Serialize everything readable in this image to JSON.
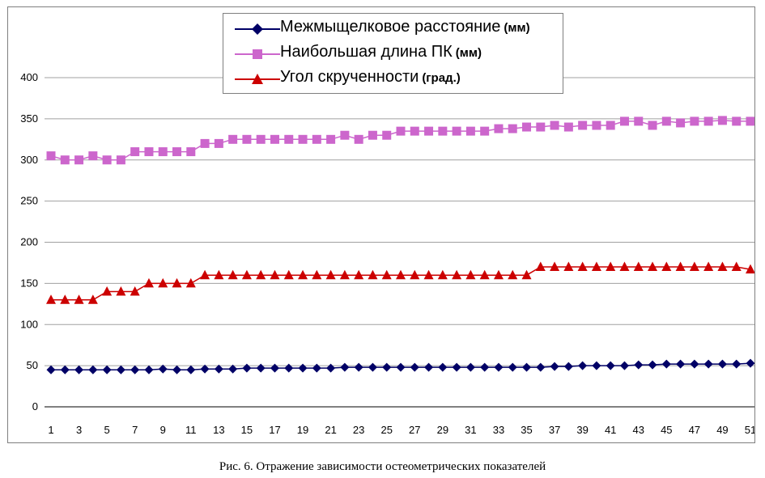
{
  "chart_data": {
    "type": "line",
    "x": [
      1,
      2,
      3,
      4,
      5,
      6,
      7,
      8,
      9,
      10,
      11,
      12,
      13,
      14,
      15,
      16,
      17,
      18,
      19,
      20,
      21,
      22,
      23,
      24,
      25,
      26,
      27,
      28,
      29,
      30,
      31,
      32,
      33,
      34,
      35,
      36,
      37,
      38,
      39,
      40,
      41,
      42,
      43,
      44,
      45,
      46,
      47,
      48,
      49,
      50,
      51
    ],
    "xticks": [
      1,
      3,
      5,
      7,
      9,
      11,
      13,
      15,
      17,
      19,
      21,
      23,
      25,
      27,
      29,
      31,
      33,
      35,
      37,
      39,
      41,
      43,
      45,
      47,
      49,
      51
    ],
    "ylim": [
      0,
      400
    ],
    "yticks": [
      0,
      50,
      100,
      150,
      200,
      250,
      300,
      350,
      400
    ],
    "legend_position": "top-center",
    "series": [
      {
        "name": "Межмыщелковое расстояние",
        "unit": "(мм)",
        "color": "#000066",
        "marker": "diamond",
        "values": [
          45,
          45,
          45,
          45,
          45,
          45,
          45,
          45,
          46,
          45,
          45,
          46,
          46,
          46,
          47,
          47,
          47,
          47,
          47,
          47,
          47,
          48,
          48,
          48,
          48,
          48,
          48,
          48,
          48,
          48,
          48,
          48,
          48,
          48,
          48,
          48,
          49,
          49,
          50,
          50,
          50,
          50,
          51,
          51,
          52,
          52,
          52,
          52,
          52,
          52,
          53
        ]
      },
      {
        "name": "Наибольшая длина ПК",
        "unit": "(мм)",
        "color": "#cc66cc",
        "marker": "square",
        "values": [
          305,
          300,
          300,
          305,
          300,
          300,
          310,
          310,
          310,
          310,
          310,
          320,
          320,
          325,
          325,
          325,
          325,
          325,
          325,
          325,
          325,
          330,
          325,
          330,
          330,
          335,
          335,
          335,
          335,
          335,
          335,
          335,
          338,
          338,
          340,
          340,
          342,
          340,
          342,
          342,
          342,
          347,
          347,
          342,
          347,
          345,
          347,
          347,
          348,
          347,
          347
        ]
      },
      {
        "name": "Угол скрученности",
        "unit": "(град.)",
        "color": "#cc0000",
        "marker": "triangle",
        "values": [
          130,
          130,
          130,
          130,
          140,
          140,
          140,
          150,
          150,
          150,
          150,
          160,
          160,
          160,
          160,
          160,
          160,
          160,
          160,
          160,
          160,
          160,
          160,
          160,
          160,
          160,
          160,
          160,
          160,
          160,
          160,
          160,
          160,
          160,
          160,
          170,
          170,
          170,
          170,
          170,
          170,
          170,
          170,
          170,
          170,
          170,
          170,
          170,
          170,
          170,
          167
        ]
      }
    ]
  },
  "caption": "Рис. 6. Отражение зависимости остеометрических  показателей"
}
